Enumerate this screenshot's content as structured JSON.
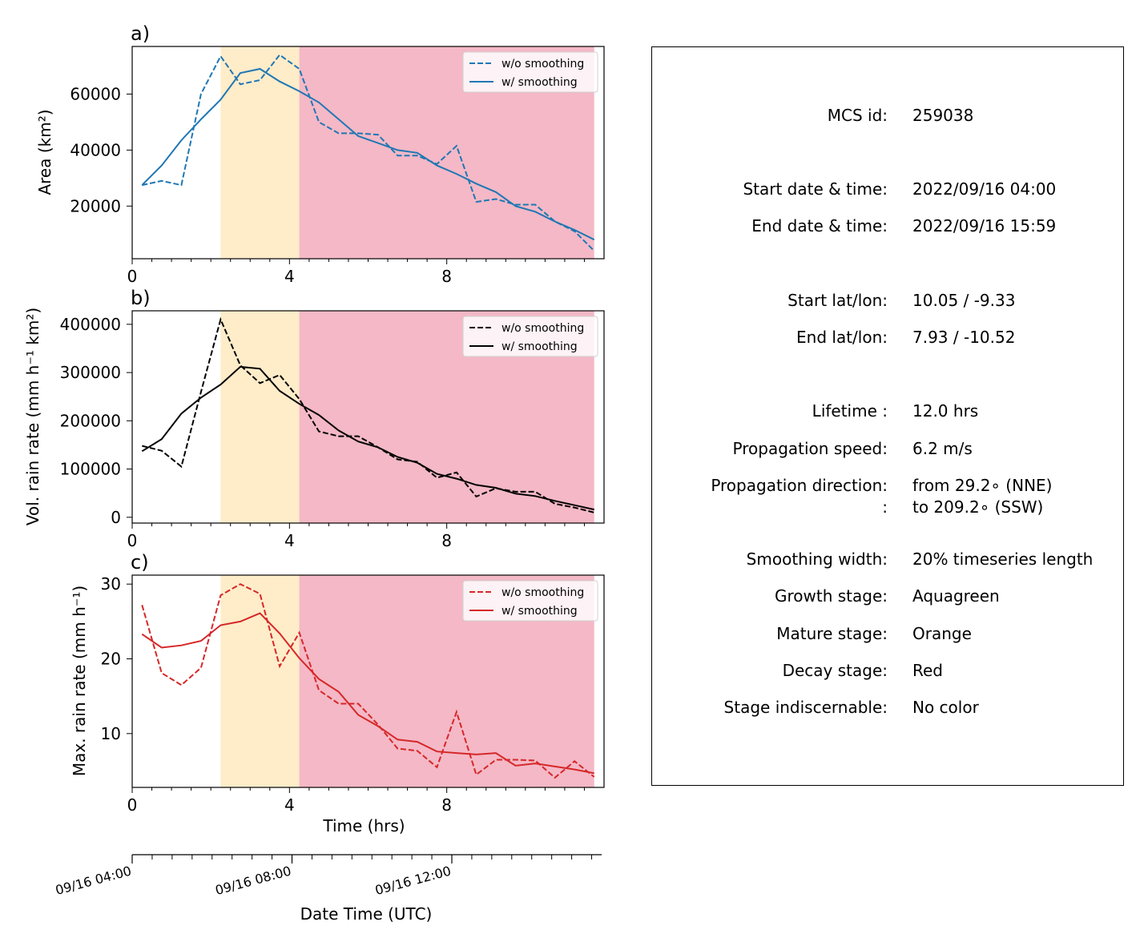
{
  "chart_data": [
    {
      "type": "line",
      "panel_label": "a)",
      "ylabel": "Area  (km²)",
      "xlim": [
        0,
        12
      ],
      "ylim": [
        1200,
        77000
      ],
      "xticks": [
        0,
        4,
        8
      ],
      "yticks": [
        20000,
        40000,
        60000
      ],
      "stage_bands": [
        {
          "stage": "Mature",
          "color": "#ffecc9",
          "x": [
            2.25,
            4.25
          ]
        },
        {
          "stage": "Decay",
          "color": "#f4b8c6",
          "x": [
            4.25,
            11.75
          ]
        }
      ],
      "legend": "top-right",
      "color": "#1f77b4",
      "x": [
        0.25,
        0.75,
        1.25,
        1.75,
        2.25,
        2.75,
        3.25,
        3.75,
        4.25,
        4.75,
        5.25,
        5.75,
        6.25,
        6.75,
        7.25,
        7.75,
        8.25,
        8.75,
        9.25,
        9.75,
        10.25,
        10.75,
        11.25,
        11.75
      ],
      "series": [
        {
          "name": "w/o smoothing",
          "style": "dashed",
          "values": [
            27500,
            29000,
            27500,
            60000,
            73500,
            63500,
            65000,
            74000,
            69000,
            50000,
            46000,
            46000,
            45500,
            38000,
            38000,
            35000,
            41500,
            21500,
            22500,
            20500,
            20500,
            14500,
            11000,
            4000
          ]
        },
        {
          "name": "w/ smoothing",
          "style": "solid",
          "values": [
            27500,
            34500,
            43500,
            51000,
            58000,
            67500,
            69000,
            64500,
            61000,
            57000,
            51000,
            45000,
            42500,
            40000,
            39000,
            34500,
            31500,
            28000,
            25000,
            20000,
            18000,
            14500,
            11500,
            8000
          ]
        }
      ]
    },
    {
      "type": "line",
      "panel_label": "b)",
      "ylabel": "Vol. rain rate (mm h⁻¹ km²)",
      "xlim": [
        0,
        12
      ],
      "ylim": [
        -12000,
        428000
      ],
      "xticks": [
        0,
        4,
        8
      ],
      "yticks": [
        0,
        100000,
        200000,
        300000,
        400000
      ],
      "stage_bands": [
        {
          "stage": "Mature",
          "color": "#ffecc9",
          "x": [
            2.25,
            4.25
          ]
        },
        {
          "stage": "Decay",
          "color": "#f4b8c6",
          "x": [
            4.25,
            11.75
          ]
        }
      ],
      "legend": "top-right",
      "color": "#000000",
      "x": [
        0.25,
        0.75,
        1.25,
        1.75,
        2.25,
        2.75,
        3.25,
        3.75,
        4.25,
        4.75,
        5.25,
        5.75,
        6.25,
        6.75,
        7.25,
        7.75,
        8.25,
        8.75,
        9.25,
        9.75,
        10.25,
        10.75,
        11.25,
        11.75
      ],
      "series": [
        {
          "name": "w/o smoothing",
          "style": "dashed",
          "values": [
            148000,
            138000,
            105000,
            260000,
            410000,
            315000,
            278000,
            295000,
            245000,
            178000,
            168000,
            168000,
            145000,
            120000,
            115000,
            82000,
            93000,
            43000,
            60000,
            53000,
            53000,
            28000,
            20000,
            10000
          ]
        },
        {
          "name": "w/ smoothing",
          "style": "solid",
          "values": [
            137000,
            162000,
            215000,
            248000,
            275000,
            312000,
            308000,
            262000,
            235000,
            212000,
            180000,
            157000,
            145000,
            125000,
            113000,
            90000,
            80000,
            67000,
            61000,
            49000,
            44000,
            34000,
            25000,
            16000
          ]
        }
      ]
    },
    {
      "type": "line",
      "panel_label": "c)",
      "ylabel": "Max. rain rate  (mm h⁻¹)",
      "xlabel": "Time (hrs)",
      "xlim": [
        0,
        12
      ],
      "ylim": [
        2.8,
        31.2
      ],
      "xticks": [
        0,
        4,
        8
      ],
      "yticks": [
        10,
        20,
        30
      ],
      "stage_bands": [
        {
          "stage": "Mature",
          "color": "#ffecc9",
          "x": [
            2.25,
            4.25
          ]
        },
        {
          "stage": "Decay",
          "color": "#f4b8c6",
          "x": [
            4.25,
            11.75
          ]
        }
      ],
      "legend": "top-right",
      "color": "#d62728",
      "x": [
        0.25,
        0.75,
        1.25,
        1.75,
        2.25,
        2.75,
        3.25,
        3.75,
        4.25,
        4.75,
        5.25,
        5.75,
        6.25,
        6.75,
        7.25,
        7.75,
        8.25,
        8.75,
        9.25,
        9.75,
        10.25,
        10.75,
        11.25,
        11.75
      ],
      "series": [
        {
          "name": "w/o smoothing",
          "style": "dashed",
          "values": [
            27.2,
            18.1,
            16.5,
            18.8,
            28.5,
            30.0,
            28.7,
            19.0,
            23.5,
            15.8,
            14.0,
            14.0,
            11.2,
            8.0,
            7.7,
            5.5,
            12.9,
            4.5,
            6.5,
            6.5,
            6.4,
            4.1,
            6.3,
            4.2
          ]
        },
        {
          "name": "w/ smoothing",
          "style": "solid",
          "values": [
            23.3,
            21.5,
            21.8,
            22.4,
            24.5,
            25.0,
            26.1,
            23.4,
            20.1,
            17.3,
            15.6,
            12.5,
            11.0,
            9.2,
            8.9,
            7.6,
            7.4,
            7.2,
            7.4,
            5.7,
            6.0,
            5.6,
            5.2,
            4.7
          ]
        }
      ]
    },
    {
      "type": "axis",
      "xlabel": "Date Time (UTC)",
      "tick_labels": [
        "09/16 04:00",
        "09/16 08:00",
        "09/16 12:00"
      ],
      "tick_hours": [
        0,
        4,
        8
      ],
      "minor_tick_hours": [
        0.5,
        1,
        1.5,
        2,
        2.5,
        3,
        3.5,
        4.5,
        5,
        5.5,
        6,
        6.5,
        7,
        7.5,
        8.5,
        9,
        9.5,
        10,
        10.5,
        11,
        11.5
      ]
    }
  ],
  "info": {
    "rows": [
      {
        "key": "mcs_id",
        "label": "MCS id:",
        "value": "259038"
      },
      {
        "key": "start_time",
        "label": "Start date & time:",
        "value": "2022/09/16 04:00"
      },
      {
        "key": "end_time",
        "label": "End date & time:",
        "value": "2022/09/16 15:59"
      },
      {
        "key": "start_latlon",
        "label": "Start lat/lon:",
        "value": "10.05 / -9.33"
      },
      {
        "key": "end_latlon",
        "label": "End lat/lon:",
        "value": "7.93 / -10.52"
      },
      {
        "key": "lifetime",
        "label": "Lifetime :",
        "value": "12.0 hrs"
      },
      {
        "key": "prop_speed",
        "label": "Propagation speed:",
        "value": "6.2 m/s"
      },
      {
        "key": "prop_dir_from",
        "label": "Propagation direction:",
        "value": "from  29.2∘ (NNE)"
      },
      {
        "key": "prop_dir_to",
        "label": ":",
        "value": "to   209.2∘ (SSW)"
      },
      {
        "key": "smoothing",
        "label": "Smoothing width:",
        "value": "20% timeseries length"
      },
      {
        "key": "growth",
        "label": "Growth stage:",
        "value": "Aquagreen"
      },
      {
        "key": "mature",
        "label": "Mature stage:",
        "value": "Orange"
      },
      {
        "key": "decay",
        "label": "Decay stage:",
        "value": "Red"
      },
      {
        "key": "indiscernable",
        "label": "Stage indiscernable:",
        "value": "No color"
      }
    ]
  }
}
